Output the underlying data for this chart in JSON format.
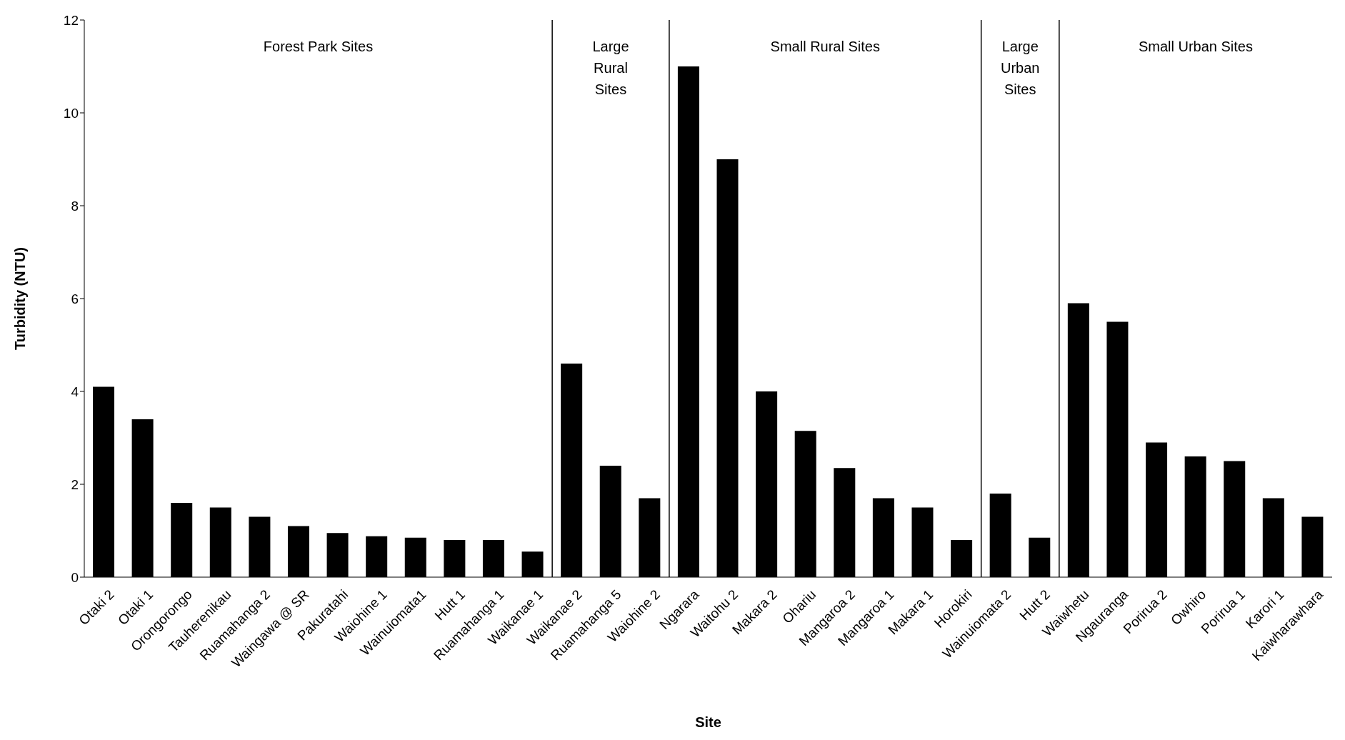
{
  "chart_data": {
    "type": "bar",
    "xlabel": "Site",
    "ylabel": "Turbidity (NTU)",
    "categories": [
      "Otaki 2",
      "Otaki 1",
      "Orongorongo",
      "Tauherenikau",
      "Ruamahanga 2",
      "Waingawa @ SR",
      "Pakuratahi",
      "Waiohine 1",
      "Wainuiomata1",
      "Hutt 1",
      "Ruamahanga 1",
      "Waikanae 1",
      "Waikanae 2",
      "Ruamahanga 5",
      "Waiohine 2",
      "Ngarara",
      "Waitohu 2",
      "Makara 2",
      "Ohariu",
      "Mangaroa 2",
      "Mangaroa 1",
      "Makara 1",
      "Horokiri",
      "Wainuiomata 2",
      "Hutt 2",
      "Waiwhetu",
      "Ngauranga",
      "Porirua 2",
      "Owhiro",
      "Porirua 1",
      "Karori 1",
      "Kaiwharawhara"
    ],
    "values": [
      4.1,
      3.4,
      1.6,
      1.5,
      1.3,
      1.1,
      0.95,
      0.88,
      0.85,
      0.8,
      0.8,
      0.55,
      4.6,
      2.4,
      1.7,
      11.0,
      9.0,
      4.0,
      3.15,
      2.35,
      1.7,
      1.5,
      0.8,
      1.8,
      0.85,
      5.9,
      5.5,
      2.9,
      2.6,
      2.5,
      1.7,
      1.3
    ],
    "color": "#000000",
    "ylim": [
      0,
      12
    ],
    "yticks": [
      0,
      2,
      4,
      6,
      8,
      10,
      12
    ],
    "grid": false,
    "legend": false,
    "annotations": [
      "Forest Park Sites",
      "Large Rural Sites",
      "Small Rural Sites",
      "Large Urban Sites",
      "Small Urban Sites"
    ]
  }
}
